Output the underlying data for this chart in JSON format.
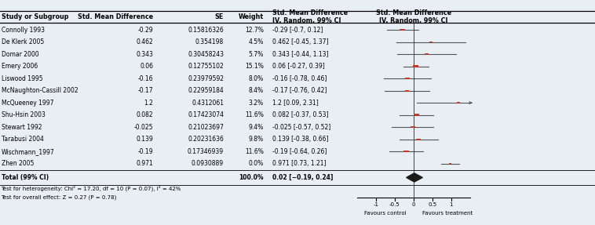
{
  "studies": [
    {
      "name": "Connolly 1993",
      "smd": -0.29,
      "se": "0.15816326",
      "weight": 12.7,
      "ci_lo": -0.7,
      "ci_hi": 0.12
    },
    {
      "name": "De Klerk 2005",
      "smd": 0.462,
      "se": "0.354198",
      "weight": 4.5,
      "ci_lo": -0.45,
      "ci_hi": 1.37
    },
    {
      "name": "Domar 2000",
      "smd": 0.343,
      "se": "0.30458243",
      "weight": 5.7,
      "ci_lo": -0.44,
      "ci_hi": 1.13
    },
    {
      "name": "Emery 2006",
      "smd": 0.06,
      "se": "0.12755102",
      "weight": 15.1,
      "ci_lo": -0.27,
      "ci_hi": 0.39
    },
    {
      "name": "Liswood 1995",
      "smd": -0.16,
      "se": "0.23979592",
      "weight": 8.0,
      "ci_lo": -0.78,
      "ci_hi": 0.46
    },
    {
      "name": "McNaughton-Cassill 2002",
      "smd": -0.17,
      "se": "0.22959184",
      "weight": 8.4,
      "ci_lo": -0.76,
      "ci_hi": 0.42
    },
    {
      "name": "McQueeney 1997",
      "smd": 1.2,
      "se": "0.4312061",
      "weight": 3.2,
      "ci_lo": 0.09,
      "ci_hi": 2.31
    },
    {
      "name": "Shu-Hsin 2003",
      "smd": 0.082,
      "se": "0.17423074",
      "weight": 11.6,
      "ci_lo": -0.37,
      "ci_hi": 0.53
    },
    {
      "name": "Stewart 1992",
      "smd": -0.025,
      "se": "0.21023697",
      "weight": 9.4,
      "ci_lo": -0.57,
      "ci_hi": 0.52
    },
    {
      "name": "Tarabusi 2004",
      "smd": 0.139,
      "se": "0.20231636",
      "weight": 9.8,
      "ci_lo": -0.38,
      "ci_hi": 0.66
    },
    {
      "name": "Wischmann_1997",
      "smd": -0.19,
      "se": "0.17346939",
      "weight": 11.6,
      "ci_lo": -0.64,
      "ci_hi": 0.26
    },
    {
      "name": "Zhen 2005",
      "smd": 0.971,
      "se": "0.0930889",
      "weight": 0.0,
      "ci_lo": 0.73,
      "ci_hi": 1.21
    }
  ],
  "total": {
    "smd": 0.02,
    "ci_lo": -0.19,
    "ci_hi": 0.24,
    "weight": 100.0
  },
  "heterogeneity_text": "Test for heterogeneity: Chi² = 17.20, df = 10 (P = 0.07), I² = 42%",
  "overall_effect_text": "Test for overall effect: Z = 0.27 (P = 0.78)",
  "xlim": [
    -1.5,
    1.5
  ],
  "xticks": [
    -1,
    -0.5,
    0,
    0.5,
    1
  ],
  "xlabel_left": "Favours control",
  "xlabel_right": "Favours treatment",
  "square_color": "#c0392b",
  "diamond_color": "#1a1a1a",
  "line_color": "#555555",
  "bg_color": "#e8eef4"
}
